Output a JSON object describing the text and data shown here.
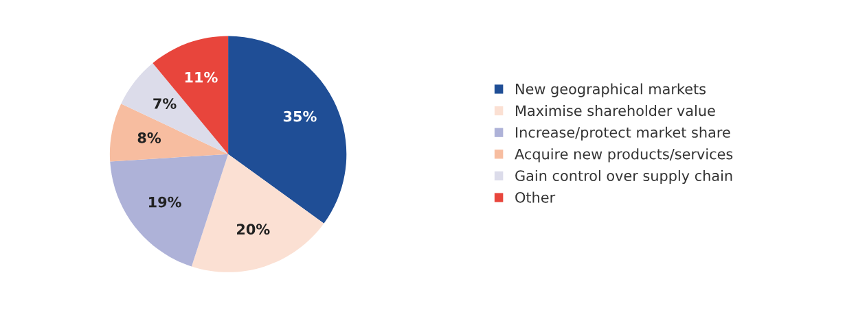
{
  "chart_data": {
    "type": "pie",
    "categories": [
      "New geographical markets",
      "Maximise shareholder value",
      "Increase/protect market share",
      "Acquire new products/services",
      "Gain control over supply chain",
      "Other"
    ],
    "values": [
      35,
      20,
      19,
      8,
      7,
      11
    ],
    "value_labels": [
      "35%",
      "20%",
      "19%",
      "8%",
      "7%",
      "11%"
    ],
    "colors": [
      "#1f4e96",
      "#fbe0d3",
      "#aeb2d8",
      "#f7bda0",
      "#dcdcea",
      "#e8453c"
    ],
    "legend": "right"
  }
}
